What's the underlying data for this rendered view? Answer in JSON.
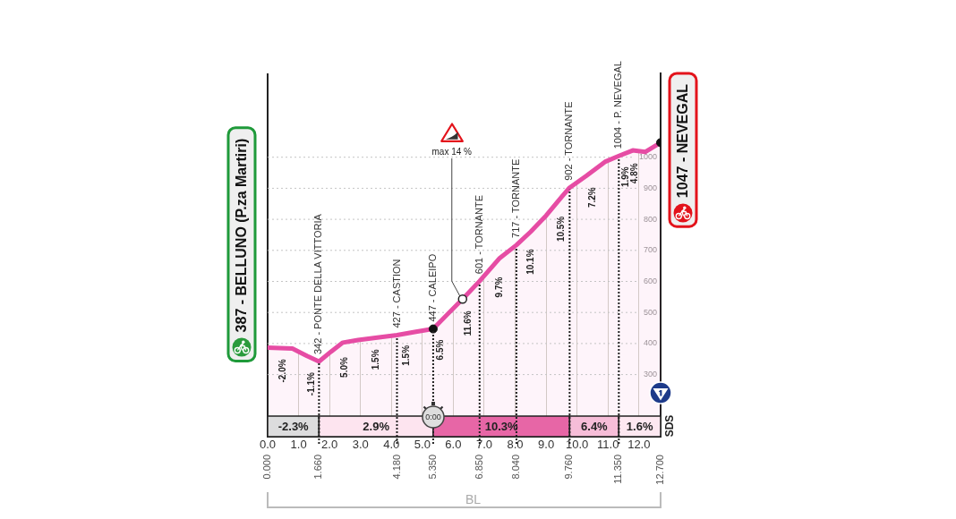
{
  "chart_data": {
    "type": "area",
    "xlim": [
      0,
      12.7
    ],
    "xticks": [
      {
        "value": 0,
        "label": "0.0"
      },
      {
        "value": 1,
        "label": "1.0"
      },
      {
        "value": 2,
        "label": "2.0"
      },
      {
        "value": 3,
        "label": "3.0"
      },
      {
        "value": 4,
        "label": "4.0"
      },
      {
        "value": 5,
        "label": "5.0"
      },
      {
        "value": 6,
        "label": "6.0"
      },
      {
        "value": 7,
        "label": "7.0"
      },
      {
        "value": 8,
        "label": "8.0"
      },
      {
        "value": 9,
        "label": "9.0"
      },
      {
        "value": 10,
        "label": "10.0"
      },
      {
        "value": 11,
        "label": "11.0"
      },
      {
        "value": 12,
        "label": "12.0"
      }
    ],
    "x2lim": [
      0,
      12.7
    ],
    "x2ticks": [
      {
        "value": 0,
        "label": "0.000"
      },
      {
        "value": 1.66,
        "label": "1.660"
      },
      {
        "value": 4.18,
        "label": "4.180"
      },
      {
        "value": 5.35,
        "label": "5.350"
      },
      {
        "value": 6.85,
        "label": "6.850"
      },
      {
        "value": 8.04,
        "label": "8.040"
      },
      {
        "value": 9.76,
        "label": "9.760"
      },
      {
        "value": 11.35,
        "label": "11.350"
      },
      {
        "value": 12.7,
        "label": "12.700"
      }
    ],
    "ylim": [
      100,
      1270
    ],
    "yticks": [
      300,
      400,
      500,
      600,
      700,
      800,
      900,
      1000
    ],
    "grid": true,
    "series": [
      {
        "color": "#e64ca4",
        "x": [
          0,
          0.8,
          1.27,
          1.66,
          2.05,
          2.43,
          2.92,
          3.6,
          4.18,
          4.75,
          5.35,
          5.8,
          6.3,
          6.85,
          7.5,
          8.04,
          8.5,
          9.0,
          9.5,
          9.76,
          10.3,
          10.9,
          11.35,
          11.8,
          12.2,
          12.7
        ],
        "values": [
          387,
          384,
          360,
          342,
          374,
          403,
          411,
          420,
          427,
          437,
          447,
          493,
          543,
          601,
          675,
          717,
          760,
          812,
          872,
          902,
          940,
          985,
          1004,
          1022,
          1017,
          1047
        ]
      },
      {
        "type": "scatter",
        "color": "#111111",
        "x": [
          5.35,
          12.7
        ],
        "values": [
          447,
          1047
        ]
      }
    ],
    "bands": [
      {
        "axis": "x",
        "from": 0,
        "to": 1.66,
        "label": "-2.3%",
        "color": "#dcdcdd"
      },
      {
        "axis": "x",
        "from": 1.66,
        "to": 5.35,
        "label": "2.9%",
        "color": "#fde4ef"
      },
      {
        "axis": "x",
        "from": 5.35,
        "to": 9.76,
        "label": "10.3%",
        "color": "#e766a6"
      },
      {
        "axis": "x",
        "from": 9.76,
        "to": 11.35,
        "label": "6.4%",
        "color": "#f6bdd8"
      },
      {
        "axis": "x",
        "from": 11.35,
        "to": 12.7,
        "label": "1.6%",
        "color": "#fde8f1"
      }
    ],
    "annotations": [
      {
        "text": "387 - BELLUNO (P.za Martiri)",
        "x": 0,
        "y": 387
      },
      {
        "text": "342 - PONTE DELLA VITTORIA",
        "x": 1.66,
        "y": 342
      },
      {
        "text": "427 - CASTION",
        "x": 4.18,
        "y": 427
      },
      {
        "text": "447 - CALEIPO",
        "x": 5.35,
        "y": 447
      },
      {
        "text": "601 - TORNANTE",
        "x": 6.85,
        "y": 601
      },
      {
        "text": "717 - TORNANTE",
        "x": 8.04,
        "y": 717
      },
      {
        "text": "902 - TORNANTE",
        "x": 9.76,
        "y": 902
      },
      {
        "text": "1004 - P. NEVEGAL",
        "x": 11.35,
        "y": 1004
      },
      {
        "text": "1047 - NEVEGAL",
        "x": 12.7,
        "y": 1047
      },
      {
        "text": "max 14 %",
        "x": 6.3,
        "y": 543
      },
      {
        "text": "0:00",
        "x": 5.35
      },
      "-2.0%",
      "-1.1%",
      "5.0%",
      "1.5%",
      "1.5%",
      "6.5%",
      "11.6%",
      "9.7%",
      "10.1%",
      "10.5%",
      "7.2%",
      "1.9%",
      "4.8%",
      "SDS",
      "BL"
    ]
  }
}
